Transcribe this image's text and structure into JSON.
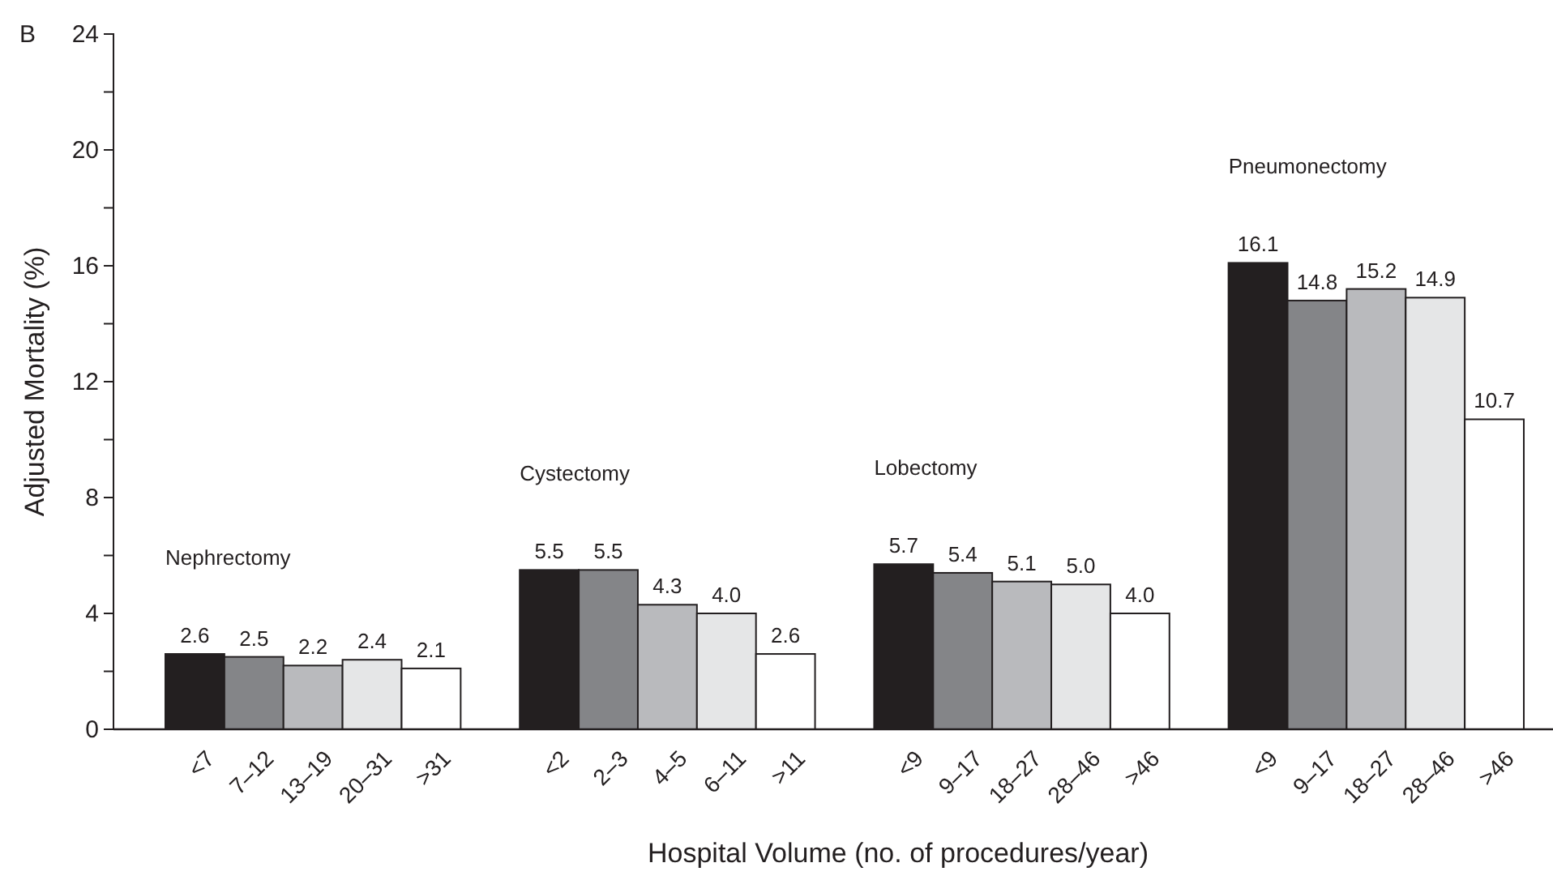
{
  "chart_data": {
    "type": "bar",
    "categories": [
      "<7",
      "7–12",
      "13–19",
      "20–31",
      ">31",
      null,
      "<2",
      "2–3",
      "4–5",
      "6–11",
      ">11",
      null,
      "<9",
      "9–17",
      "18–27",
      "28–46",
      ">46",
      null,
      "<9",
      "9–17",
      "18–27",
      "28–46",
      ">46"
    ],
    "values": [
      2.6,
      2.5,
      2.2,
      2.4,
      2.1,
      null,
      5.5,
      5.5,
      4.3,
      4.0,
      2.6,
      null,
      5.7,
      5.4,
      5.1,
      5.0,
      4.0,
      null,
      16.1,
      14.8,
      15.2,
      14.9,
      10.7
    ],
    "colors": [
      "#231f20",
      "#848588",
      "#b9babd",
      "#e5e6e7",
      "#ffffff",
      null,
      "#231f20",
      "#848588",
      "#b9babd",
      "#e5e6e7",
      "#ffffff",
      null,
      "#231f20",
      "#848588",
      "#b9babd",
      "#e5e6e7",
      "#ffffff",
      null,
      "#231f20",
      "#848588",
      "#b9babd",
      "#e5e6e7",
      "#ffffff"
    ],
    "value_labels": [
      "2.6",
      "2.5",
      "2.2",
      "2.4",
      "2.1",
      null,
      "5.5",
      "5.5",
      "4.3",
      "4.0",
      "2.6",
      null,
      "5.7",
      "5.4",
      "5.1",
      "5.0",
      "4.0",
      null,
      "16.1",
      "14.8",
      "15.2",
      "14.9",
      "10.7"
    ],
    "ylim": [
      0,
      24
    ],
    "yticks": [
      0,
      {
        "value": 2,
        "label": null
      },
      4,
      {
        "value": 6,
        "label": null
      },
      8,
      {
        "value": 10,
        "label": null
      },
      12,
      {
        "value": 14,
        "label": null
      },
      16,
      {
        "value": 18,
        "label": null
      },
      20,
      {
        "value": 22,
        "label": null
      },
      24
    ],
    "ylabel": "Adjusted Mortality (%)",
    "xlabel": "Hospital Volume (no. of procedures/year)",
    "grid": false,
    "annotations": [
      "B",
      "Nephrectomy",
      "Cystectomy",
      "Lobectomy",
      "Pneumonectomy"
    ]
  }
}
